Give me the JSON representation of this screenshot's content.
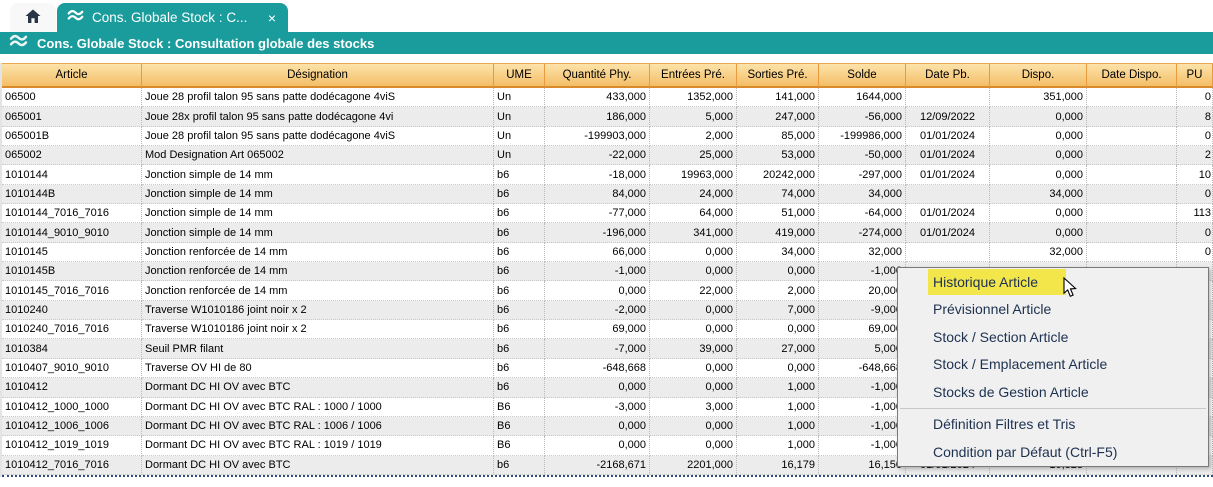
{
  "colors": {
    "accent_teal": "#1b9c9c",
    "header_top": "#fce3a9",
    "header_bottom": "#f4be67",
    "menu_highlight": "#f2e64b"
  },
  "tabs": {
    "home": {
      "icon": "home-icon"
    },
    "active": {
      "icon": "stock-icon",
      "label": "Cons. Globale Stock : C...",
      "close_glyph": "×"
    }
  },
  "title_bar": {
    "icon": "stock-icon",
    "title": "Cons. Globale Stock : Consultation globale des stocks"
  },
  "table": {
    "columns": [
      {
        "key": "article",
        "label": "Article"
      },
      {
        "key": "designation",
        "label": "Désignation"
      },
      {
        "key": "ume",
        "label": "UME"
      },
      {
        "key": "qte_phy",
        "label": "Quantité Phy."
      },
      {
        "key": "entrees",
        "label": "Entrées Pré."
      },
      {
        "key": "sorties",
        "label": "Sorties Pré."
      },
      {
        "key": "solde",
        "label": "Solde"
      },
      {
        "key": "date_pb",
        "label": "Date Pb."
      },
      {
        "key": "dispo",
        "label": "Dispo."
      },
      {
        "key": "date_dispo",
        "label": "Date Dispo."
      },
      {
        "key": "pu",
        "label": "PU"
      }
    ],
    "rows": [
      [
        "06500",
        "Joue 28 profil talon 95 sans patte dodécagone 4viS",
        "Un",
        "433,000",
        "1352,000",
        "141,000",
        "1644,000",
        "",
        "351,000",
        "",
        "0"
      ],
      [
        "065001",
        "Joue 28x profil talon 95 sans patte dodécagone 4vi",
        "Un",
        "186,000",
        "5,000",
        "247,000",
        "-56,000",
        "12/09/2022",
        "0,000",
        "",
        "8"
      ],
      [
        "065001B",
        "Joue 28 profil talon 95 sans patte dodécagone 4viS",
        "Un",
        "-199903,000",
        "2,000",
        "85,000",
        "-199986,000",
        "01/01/2024",
        "0,000",
        "",
        "0"
      ],
      [
        "065002",
        "Mod Designation Art 065002",
        "Un",
        "-22,000",
        "25,000",
        "53,000",
        "-50,000",
        "01/01/2024",
        "0,000",
        "",
        "2"
      ],
      [
        "1010144",
        "Jonction simple de 14 mm",
        "b6",
        "-18,000",
        "19963,000",
        "20242,000",
        "-297,000",
        "01/01/2024",
        "0,000",
        "",
        "10"
      ],
      [
        "1010144B",
        "Jonction simple de 14 mm",
        "b6",
        "84,000",
        "24,000",
        "74,000",
        "34,000",
        "",
        "34,000",
        "",
        "0"
      ],
      [
        "1010144_7016_7016",
        "Jonction simple de 14 mm",
        "b6",
        "-77,000",
        "64,000",
        "51,000",
        "-64,000",
        "01/01/2024",
        "0,000",
        "",
        "113"
      ],
      [
        "1010144_9010_9010",
        "Jonction simple de 14 mm",
        "b6",
        "-196,000",
        "341,000",
        "419,000",
        "-274,000",
        "01/01/2024",
        "0,000",
        "",
        "0"
      ],
      [
        "1010145",
        "Jonction renforcée de 14 mm",
        "b6",
        "66,000",
        "0,000",
        "34,000",
        "32,000",
        "",
        "32,000",
        "",
        "0"
      ],
      [
        "1010145B",
        "Jonction renforcée de 14 mm",
        "b6",
        "-1,000",
        "0,000",
        "0,000",
        "-1,000",
        "",
        "",
        "",
        ""
      ],
      [
        "1010145_7016_7016",
        "Jonction renforcée de 14 mm",
        "b6",
        "0,000",
        "22,000",
        "2,000",
        "20,000",
        "",
        "",
        "",
        ""
      ],
      [
        "1010240",
        "Traverse W1010186 joint noir x 2",
        "b6",
        "-2,000",
        "0,000",
        "7,000",
        "-9,000",
        "",
        "",
        "",
        ""
      ],
      [
        "1010240_7016_7016",
        "Traverse W1010186 joint noir x 2",
        "b6",
        "69,000",
        "0,000",
        "0,000",
        "69,000",
        "",
        "",
        "",
        ""
      ],
      [
        "1010384",
        "Seuil PMR filant",
        "b6",
        "-7,000",
        "39,000",
        "27,000",
        "5,000",
        "",
        "",
        "",
        ""
      ],
      [
        "1010407_9010_9010",
        "Traverse OV HI de 80",
        "b6",
        "-648,668",
        "0,000",
        "0,000",
        "-648,668",
        "",
        "",
        "",
        ""
      ],
      [
        "1010412",
        "Dormant DC HI OV avec BTC",
        "b6",
        "0,000",
        "0,000",
        "1,000",
        "-1,000",
        "",
        "",
        "",
        ""
      ],
      [
        "1010412_1000_1000",
        "Dormant DC HI OV avec BTC RAL : 1000 / 1000",
        "B6",
        "-3,000",
        "3,000",
        "1,000",
        "-1,000",
        "",
        "",
        "",
        ""
      ],
      [
        "1010412_1006_1006",
        "Dormant DC HI OV avec BTC RAL : 1006 / 1006",
        "B6",
        "0,000",
        "0,000",
        "1,000",
        "-1,000",
        "",
        "",
        "",
        ""
      ],
      [
        "1010412_1019_1019",
        "Dormant DC HI OV avec BTC RAL : 1019 / 1019",
        "B6",
        "0,000",
        "0,000",
        "1,000",
        "-1,000",
        "",
        "",
        "",
        ""
      ],
      [
        "1010412_7016_7016",
        "Dormant DC HI OV avec BTC",
        "b6",
        "-2168,671",
        "2201,000",
        "16,179",
        "16,150",
        "01/01/2024",
        "10,323",
        "",
        ""
      ]
    ]
  },
  "context_menu": {
    "items": [
      {
        "label": "Historique Article",
        "highlighted": true
      },
      {
        "label": "Prévisionnel Article"
      },
      {
        "label": "Stock / Section Article"
      },
      {
        "label": "Stock / Emplacement Article"
      },
      {
        "label": "Stocks de Gestion Article"
      },
      {
        "separator": true
      },
      {
        "label": "Définition Filtres et Tris"
      },
      {
        "label": "Condition par Défaut (Ctrl-F5)"
      }
    ]
  }
}
